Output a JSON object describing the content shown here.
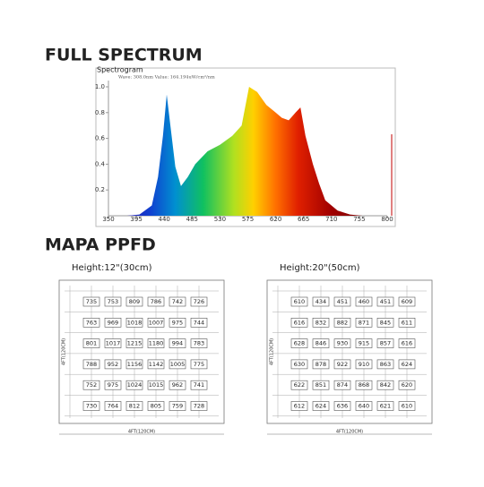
{
  "headings": {
    "spectrum": "FULL SPECTRUM",
    "ppfd": "MAPA PPFD"
  },
  "chart_data": {
    "type": "area",
    "title": "Spectrogram",
    "subtitle": "Wave: 308.0nm Value: 164.194uW/cm²/nm",
    "x": [
      380,
      400,
      420,
      430,
      438,
      444,
      450,
      458,
      467,
      478,
      490,
      510,
      530,
      550,
      565,
      577,
      590,
      605,
      620,
      630,
      641,
      652,
      660,
      668,
      680,
      690,
      700,
      720,
      740,
      760,
      800
    ],
    "values": [
      0,
      0.01,
      0.08,
      0.3,
      0.62,
      0.94,
      0.7,
      0.38,
      0.23,
      0.3,
      0.4,
      0.5,
      0.55,
      0.62,
      0.7,
      1.0,
      0.96,
      0.86,
      0.8,
      0.76,
      0.74,
      0.8,
      0.84,
      0.62,
      0.4,
      0.25,
      0.12,
      0.04,
      0.01,
      0,
      0
    ],
    "xlim": [
      350,
      800
    ],
    "ylim": [
      0,
      1.0
    ],
    "xticks": [
      350,
      395,
      440,
      485,
      530,
      575,
      620,
      665,
      710,
      755,
      800
    ],
    "yticks": [
      {
        "value": 0.2,
        "label": "0.2"
      },
      {
        "value": 0.4,
        "label": "0.4"
      },
      {
        "value": 0.6,
        "label": "0.6"
      },
      {
        "value": 0.8,
        "label": "0.8"
      },
      {
        "value": 1.0,
        "label": "1.0"
      }
    ]
  },
  "grids": [
    {
      "title": "Height:12\"(30cm)",
      "side_label": "4FT(120CM)",
      "bottom_label": "4FT(120CM)",
      "rows": [
        [
          "735",
          "753",
          "809",
          "786",
          "742",
          "726"
        ],
        [
          "763",
          "969",
          "1018",
          "1007",
          "975",
          "744"
        ],
        [
          "801",
          "1017",
          "1215",
          "1180",
          "994",
          "783"
        ],
        [
          "788",
          "952",
          "1156",
          "1142",
          "1005",
          "775"
        ],
        [
          "752",
          "975",
          "1024",
          "1015",
          "962",
          "741"
        ],
        [
          "730",
          "764",
          "812",
          "805",
          "759",
          "728"
        ]
      ]
    },
    {
      "title": "Height:20\"(50cm)",
      "side_label": "4FT(120CM)",
      "bottom_label": "4FT(120CM)",
      "rows": [
        [
          "610",
          "434",
          "451",
          "460",
          "451",
          "609"
        ],
        [
          "616",
          "832",
          "882",
          "871",
          "845",
          "611"
        ],
        [
          "628",
          "846",
          "930",
          "915",
          "857",
          "616"
        ],
        [
          "630",
          "878",
          "922",
          "910",
          "863",
          "624"
        ],
        [
          "622",
          "851",
          "874",
          "868",
          "842",
          "620"
        ],
        [
          "612",
          "624",
          "636",
          "640",
          "621",
          "610"
        ]
      ]
    }
  ]
}
